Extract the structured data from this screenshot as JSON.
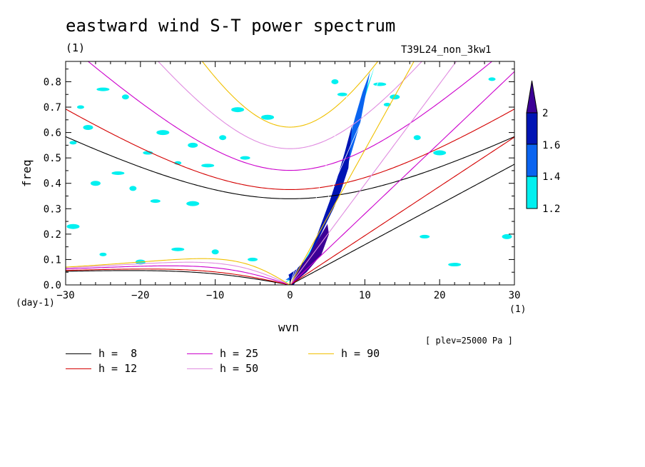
{
  "title": "eastward wind S-T power spectrum",
  "unit_label": "(1)",
  "run_label": "T39L24_non_3kw1",
  "plev": "[ plev=25000 Pa ]",
  "colors": {
    "h8": "#000000",
    "h12": "#d40000",
    "h25": "#cc00cc",
    "h50": "#e08ce0",
    "h90": "#f0c000",
    "level_1_2": "#00f0f0",
    "level_1_4": "#0a64f0",
    "level_1_6": "#0014b4",
    "level_2": "#3c0096"
  },
  "chart_data": {
    "type": "contour",
    "title": "eastward wind S-T power spectrum",
    "xlabel": "wvn",
    "ylabel": "freq",
    "x_unit": "(1)",
    "y_unit": "(day-1)",
    "xlim": [
      -30,
      30
    ],
    "ylim": [
      0,
      0.88
    ],
    "x_ticks": [
      -30,
      -20,
      -10,
      0,
      10,
      20,
      30
    ],
    "y_ticks": [
      0,
      0.1,
      0.2,
      0.3,
      0.4,
      0.5,
      0.6,
      0.7,
      0.8
    ],
    "colorbar": {
      "levels": [
        1.2,
        1.4,
        1.6,
        2
      ],
      "labels": [
        "1.2",
        "1.4",
        "1.6",
        "2"
      ]
    },
    "series": [
      {
        "name": "h =  8",
        "h": 8,
        "color": "#000000"
      },
      {
        "name": "h = 12",
        "h": 12,
        "color": "#d40000"
      },
      {
        "name": "h = 25",
        "h": 25,
        "color": "#cc00cc"
      },
      {
        "name": "h = 50",
        "h": 50,
        "color": "#e08ce0"
      },
      {
        "name": "h = 90",
        "h": 90,
        "color": "#f0c000"
      }
    ],
    "power_band": [
      [
        0,
        0.0,
        0.04
      ],
      [
        1,
        0.02,
        0.09
      ],
      [
        2,
        0.05,
        0.15
      ],
      [
        3,
        0.09,
        0.22
      ],
      [
        4,
        0.14,
        0.3
      ],
      [
        5,
        0.2,
        0.38
      ],
      [
        6,
        0.26,
        0.47
      ],
      [
        7,
        0.33,
        0.57
      ],
      [
        8,
        0.42,
        0.68
      ],
      [
        9,
        0.52,
        0.78
      ],
      [
        10,
        0.62,
        0.86
      ]
    ],
    "scatter_patches": [
      [
        -28,
        0.7
      ],
      [
        -27,
        0.62
      ],
      [
        -25,
        0.77
      ],
      [
        -22,
        0.74
      ],
      [
        -19,
        0.52
      ],
      [
        -17,
        0.6
      ],
      [
        -15,
        0.48
      ],
      [
        -13,
        0.55
      ],
      [
        -11,
        0.47
      ],
      [
        -9,
        0.58
      ],
      [
        -6,
        0.5
      ],
      [
        -3,
        0.66
      ],
      [
        -29,
        0.56
      ],
      [
        -26,
        0.4
      ],
      [
        -23,
        0.44
      ],
      [
        -21,
        0.38
      ],
      [
        -18,
        0.33
      ],
      [
        -29,
        0.23
      ],
      [
        -25,
        0.12
      ],
      [
        -20,
        0.09
      ],
      [
        -15,
        0.14
      ],
      [
        -10,
        0.13
      ],
      [
        -5,
        0.1
      ],
      [
        -13,
        0.32
      ],
      [
        13,
        0.71
      ],
      [
        14,
        0.74
      ],
      [
        12,
        0.79
      ],
      [
        17,
        0.58
      ],
      [
        18,
        0.19
      ],
      [
        20,
        0.52
      ],
      [
        27,
        0.81
      ],
      [
        29,
        0.19
      ],
      [
        22,
        0.08
      ],
      [
        6,
        0.8
      ],
      [
        7,
        0.75
      ],
      [
        -7,
        0.69
      ]
    ]
  },
  "legend": [
    {
      "key": "h8",
      "label": "h =  8"
    },
    {
      "key": "h12",
      "label": "h = 12"
    },
    {
      "key": "h25",
      "label": "h = 25"
    },
    {
      "key": "h50",
      "label": "h = 50"
    },
    {
      "key": "h90",
      "label": "h = 90"
    }
  ]
}
